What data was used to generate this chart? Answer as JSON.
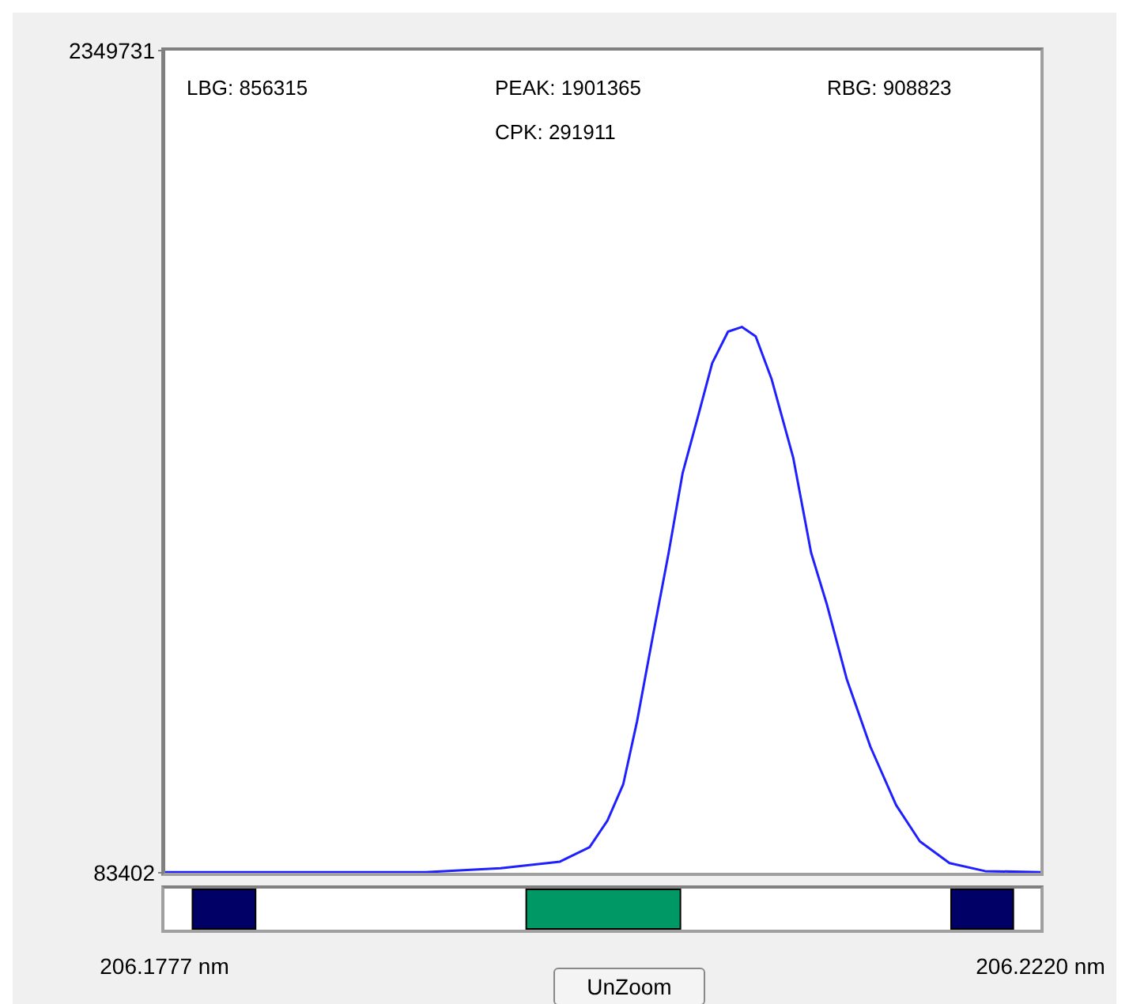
{
  "chart_data": {
    "type": "line",
    "x": [
      206.1777,
      206.1872,
      206.1909,
      206.1947,
      206.1977,
      206.1992,
      206.2001,
      206.2009,
      206.2016,
      206.2024,
      206.2032,
      206.2039,
      206.2047,
      206.2054,
      206.2062,
      206.2069,
      206.2076,
      206.2084,
      206.2095,
      206.2104,
      206.2112,
      206.2122,
      206.2134,
      206.2147,
      206.2159,
      206.2174,
      206.2192,
      206.222
    ],
    "series": [
      {
        "color": "#2020ff",
        "values": [
          85000,
          85000,
          85000,
          96000,
          114000,
          154000,
          227000,
          327000,
          501000,
          736000,
          966000,
          1184000,
          1345000,
          1488000,
          1575000,
          1588000,
          1562000,
          1445000,
          1227000,
          966000,
          823000,
          618000,
          431000,
          270000,
          170000,
          110000,
          88000,
          85000
        ]
      }
    ],
    "xlim": [
      206.1777,
      206.222
    ],
    "xticks": [
      {
        "value": 206.1777,
        "label": "206.1777 nm"
      },
      {
        "value": 206.222,
        "label": "206.2220 nm"
      }
    ],
    "ylim": [
      83402,
      2349731
    ],
    "yticks": [
      83402,
      2349731
    ],
    "marker": "none",
    "line_style": "solid",
    "annotations": [
      "LBG: 856315",
      "PEAK: 1901365",
      "RBG: 908823",
      "CPK: 291911",
      "UnZoom"
    ]
  }
}
